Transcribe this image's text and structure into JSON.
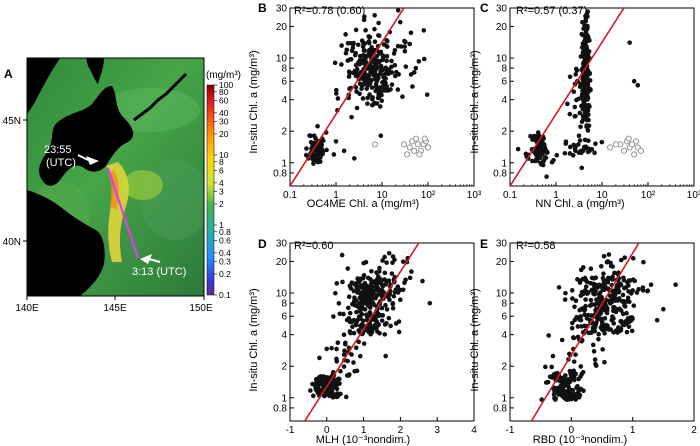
{
  "panels": {
    "A": {
      "letter": "A",
      "unit": "(mg/m³)",
      "lon_ticks": [
        "140E",
        "145E",
        "150E"
      ],
      "lat_ticks": [
        "45N",
        "40N"
      ],
      "colorbar_ticks": [
        "100",
        "80",
        "60",
        "40",
        "30",
        "20",
        "10",
        "8",
        "6",
        "4",
        "3",
        "2",
        "1",
        "0.8",
        "0.6",
        "0.4",
        "0.3",
        "0.2",
        "0.1"
      ],
      "annotation_start_time": "23:55",
      "annotation_start_unit": "(UTC)",
      "annotation_end": "3:13 (UTC)"
    },
    "B": {
      "letter": "B",
      "stat": "R²=0.78 (0.60)",
      "xlabel": "OC4ME Chl. a (mg/m³)",
      "ylabel": "In-situ Chl. a (mg/m³)"
    },
    "C": {
      "letter": "C",
      "stat": "R²=0.57 (0.37)",
      "xlabel": "NN Chl. a (mg/m³)",
      "ylabel": "In-situ Chl. a (mg/m³)"
    },
    "D": {
      "letter": "D",
      "stat": "R²=0.60",
      "xlabel": "MLH (10⁻³nondim.)",
      "ylabel": "In-situ Chl. a (mg/m³)"
    },
    "E": {
      "letter": "E",
      "stat": "R²=0.58",
      "xlabel": "RBD (10⁻³nondim.)",
      "ylabel": "In-situ Chl. a (mg/m³)"
    }
  },
  "colors": {
    "points": "#111111",
    "open_points": "#888888",
    "fit_line": "#d7191c",
    "land": "#000000",
    "track": "#e040e0"
  },
  "chart_data": [
    {
      "panel": "B",
      "type": "scatter",
      "xscale": "log",
      "yscale": "log",
      "xlim": [
        0.1,
        1000
      ],
      "ylim": [
        0.6,
        30
      ],
      "xticks": [
        0.1,
        1,
        10,
        100,
        1000
      ],
      "xtick_labels": [
        "0.1",
        "1",
        "10",
        "10²",
        "10³"
      ],
      "yticks": [
        0.8,
        1,
        2,
        4,
        6,
        8,
        10,
        20,
        30
      ],
      "ytick_labels": [
        "0.8",
        "1",
        "2",
        "4",
        "6",
        "8",
        "10",
        "20",
        "30"
      ],
      "fit_line": [
        [
          0.1,
          0.6
        ],
        [
          30,
          30
        ]
      ],
      "clusters": [
        {
          "n": 70,
          "xc": 0.38,
          "xs": 0.09,
          "yc": 1.35,
          "ys": 0.08,
          "seed": 11
        },
        {
          "n": 230,
          "xc": 6,
          "xs": 0.3,
          "yc": 7.5,
          "ys": 0.2,
          "seed": 12
        },
        {
          "n": 25,
          "xc": 20,
          "xs": 0.45,
          "yc": 12,
          "ys": 0.18,
          "seed": 13
        }
      ],
      "points": [
        [
          0.3,
          1.3
        ],
        [
          0.5,
          1.7
        ],
        [
          1.5,
          1.3
        ],
        [
          2.5,
          1.1
        ],
        [
          1.0,
          1.6
        ],
        [
          0.9,
          1.2
        ]
      ],
      "open_points": [
        [
          7,
          1.5
        ],
        [
          30,
          1.5
        ],
        [
          40,
          1.4
        ],
        [
          45,
          1.6
        ],
        [
          50,
          1.3
        ],
        [
          60,
          1.5
        ],
        [
          70,
          1.3
        ],
        [
          80,
          1.5
        ],
        [
          90,
          1.6
        ],
        [
          100,
          1.4
        ],
        [
          55,
          1.7
        ],
        [
          35,
          1.2
        ],
        [
          65,
          1.2
        ],
        [
          85,
          1.7
        ]
      ]
    },
    {
      "panel": "C",
      "type": "scatter",
      "xscale": "log",
      "yscale": "log",
      "xlim": [
        0.1,
        1000
      ],
      "ylim": [
        0.6,
        30
      ],
      "xticks": [
        0.1,
        1,
        10,
        100,
        1000
      ],
      "xtick_labels": [
        "0.1",
        "1",
        "10",
        "10²",
        "10³"
      ],
      "yticks": [
        0.8,
        1,
        2,
        4,
        6,
        8,
        10,
        20,
        30
      ],
      "ytick_labels": [
        "0.8",
        "1",
        "2",
        "4",
        "6",
        "8",
        "10",
        "20",
        "30"
      ],
      "fit_line": [
        [
          0.1,
          0.6
        ],
        [
          30,
          30
        ]
      ],
      "clusters": [
        {
          "n": 80,
          "xc": 0.45,
          "xs": 0.1,
          "yc": 1.3,
          "ys": 0.08,
          "seed": 21
        },
        {
          "n": 240,
          "xc": 4.4,
          "xs": 0.04,
          "yc": 6.5,
          "ys": 0.25,
          "seed": 22
        },
        {
          "n": 25,
          "xc": 3.3,
          "xs": 0.1,
          "yc": 4,
          "ys": 0.15,
          "seed": 23
        },
        {
          "n": 30,
          "xc": 2.5,
          "xs": 0.3,
          "yc": 1.3,
          "ys": 0.07,
          "seed": 24
        }
      ],
      "points": [
        [
          40,
          14
        ],
        [
          60,
          5.5
        ],
        [
          50,
          6
        ],
        [
          0.15,
          1.35
        ]
      ],
      "open_points": [
        [
          15,
          1.4
        ],
        [
          25,
          1.5
        ],
        [
          30,
          1.3
        ],
        [
          35,
          1.6
        ],
        [
          40,
          1.4
        ],
        [
          45,
          1.5
        ],
        [
          50,
          1.2
        ],
        [
          55,
          1.6
        ],
        [
          60,
          1.4
        ],
        [
          70,
          1.3
        ],
        [
          20,
          1.5
        ],
        [
          38,
          1.7
        ]
      ]
    },
    {
      "panel": "D",
      "type": "scatter",
      "xscale": "linear",
      "yscale": "log",
      "xlim": [
        -1,
        4
      ],
      "ylim": [
        0.6,
        30
      ],
      "xticks": [
        -1,
        0,
        1,
        2,
        3,
        4
      ],
      "xtick_labels": [
        "-1",
        "0",
        "1",
        "2",
        "3",
        "4"
      ],
      "yticks": [
        0.8,
        1,
        2,
        4,
        6,
        8,
        10,
        20,
        30
      ],
      "ytick_labels": [
        "0.8",
        "1",
        "2",
        "4",
        "6",
        "8",
        "10",
        "20",
        "30"
      ],
      "fit_line": [
        [
          -0.6,
          0.6
        ],
        [
          2.5,
          30
        ]
      ],
      "clusters": [
        {
          "n": 120,
          "xc": 0.0,
          "xs": 0.18,
          "ylo": 1.0,
          "yhi": 1.6,
          "seed": 31
        },
        {
          "n": 240,
          "xc": 1.2,
          "xs": 0.35,
          "ylo": 4,
          "yhi": 14,
          "seed": 32
        },
        {
          "n": 40,
          "xc": 1.5,
          "xs": 0.45,
          "ylo": 10,
          "yhi": 24,
          "seed": 33
        },
        {
          "n": 30,
          "xc": 0.5,
          "xs": 0.3,
          "ylo": 1.6,
          "yhi": 4,
          "seed": 34
        }
      ],
      "points": [
        [
          2.6,
          13
        ],
        [
          2.8,
          8
        ],
        [
          2.3,
          16
        ],
        [
          -0.2,
          2.4
        ],
        [
          1.6,
          2.5
        ],
        [
          0.8,
          3
        ]
      ],
      "open_points": []
    },
    {
      "panel": "E",
      "type": "scatter",
      "xscale": "linear",
      "yscale": "log",
      "xlim": [
        -1,
        2
      ],
      "ylim": [
        0.6,
        30
      ],
      "xticks": [
        -1,
        0,
        1,
        2
      ],
      "xtick_labels": [
        "-1",
        "0",
        "1",
        "2"
      ],
      "yticks": [
        0.8,
        1,
        2,
        4,
        6,
        8,
        10,
        20,
        30
      ],
      "ytick_labels": [
        "0.8",
        "1",
        "2",
        "4",
        "6",
        "8",
        "10",
        "20",
        "30"
      ],
      "fit_line": [
        [
          -0.65,
          0.6
        ],
        [
          1.1,
          30
        ]
      ],
      "clusters": [
        {
          "n": 130,
          "xc": -0.1,
          "xs": 0.15,
          "ylo": 0.95,
          "yhi": 1.7,
          "seed": 41
        },
        {
          "n": 240,
          "xc": 0.55,
          "xs": 0.28,
          "ylo": 4,
          "yhi": 14,
          "seed": 42
        },
        {
          "n": 40,
          "xc": 0.7,
          "xs": 0.3,
          "ylo": 10,
          "yhi": 24,
          "seed": 43
        },
        {
          "n": 30,
          "xc": 0.15,
          "xs": 0.2,
          "ylo": 1.6,
          "yhi": 4,
          "seed": 44
        }
      ],
      "points": [
        [
          1.3,
          12
        ],
        [
          1.5,
          7
        ],
        [
          1.7,
          12
        ],
        [
          1.4,
          5.5
        ],
        [
          -0.3,
          2.5
        ]
      ],
      "open_points": []
    }
  ]
}
